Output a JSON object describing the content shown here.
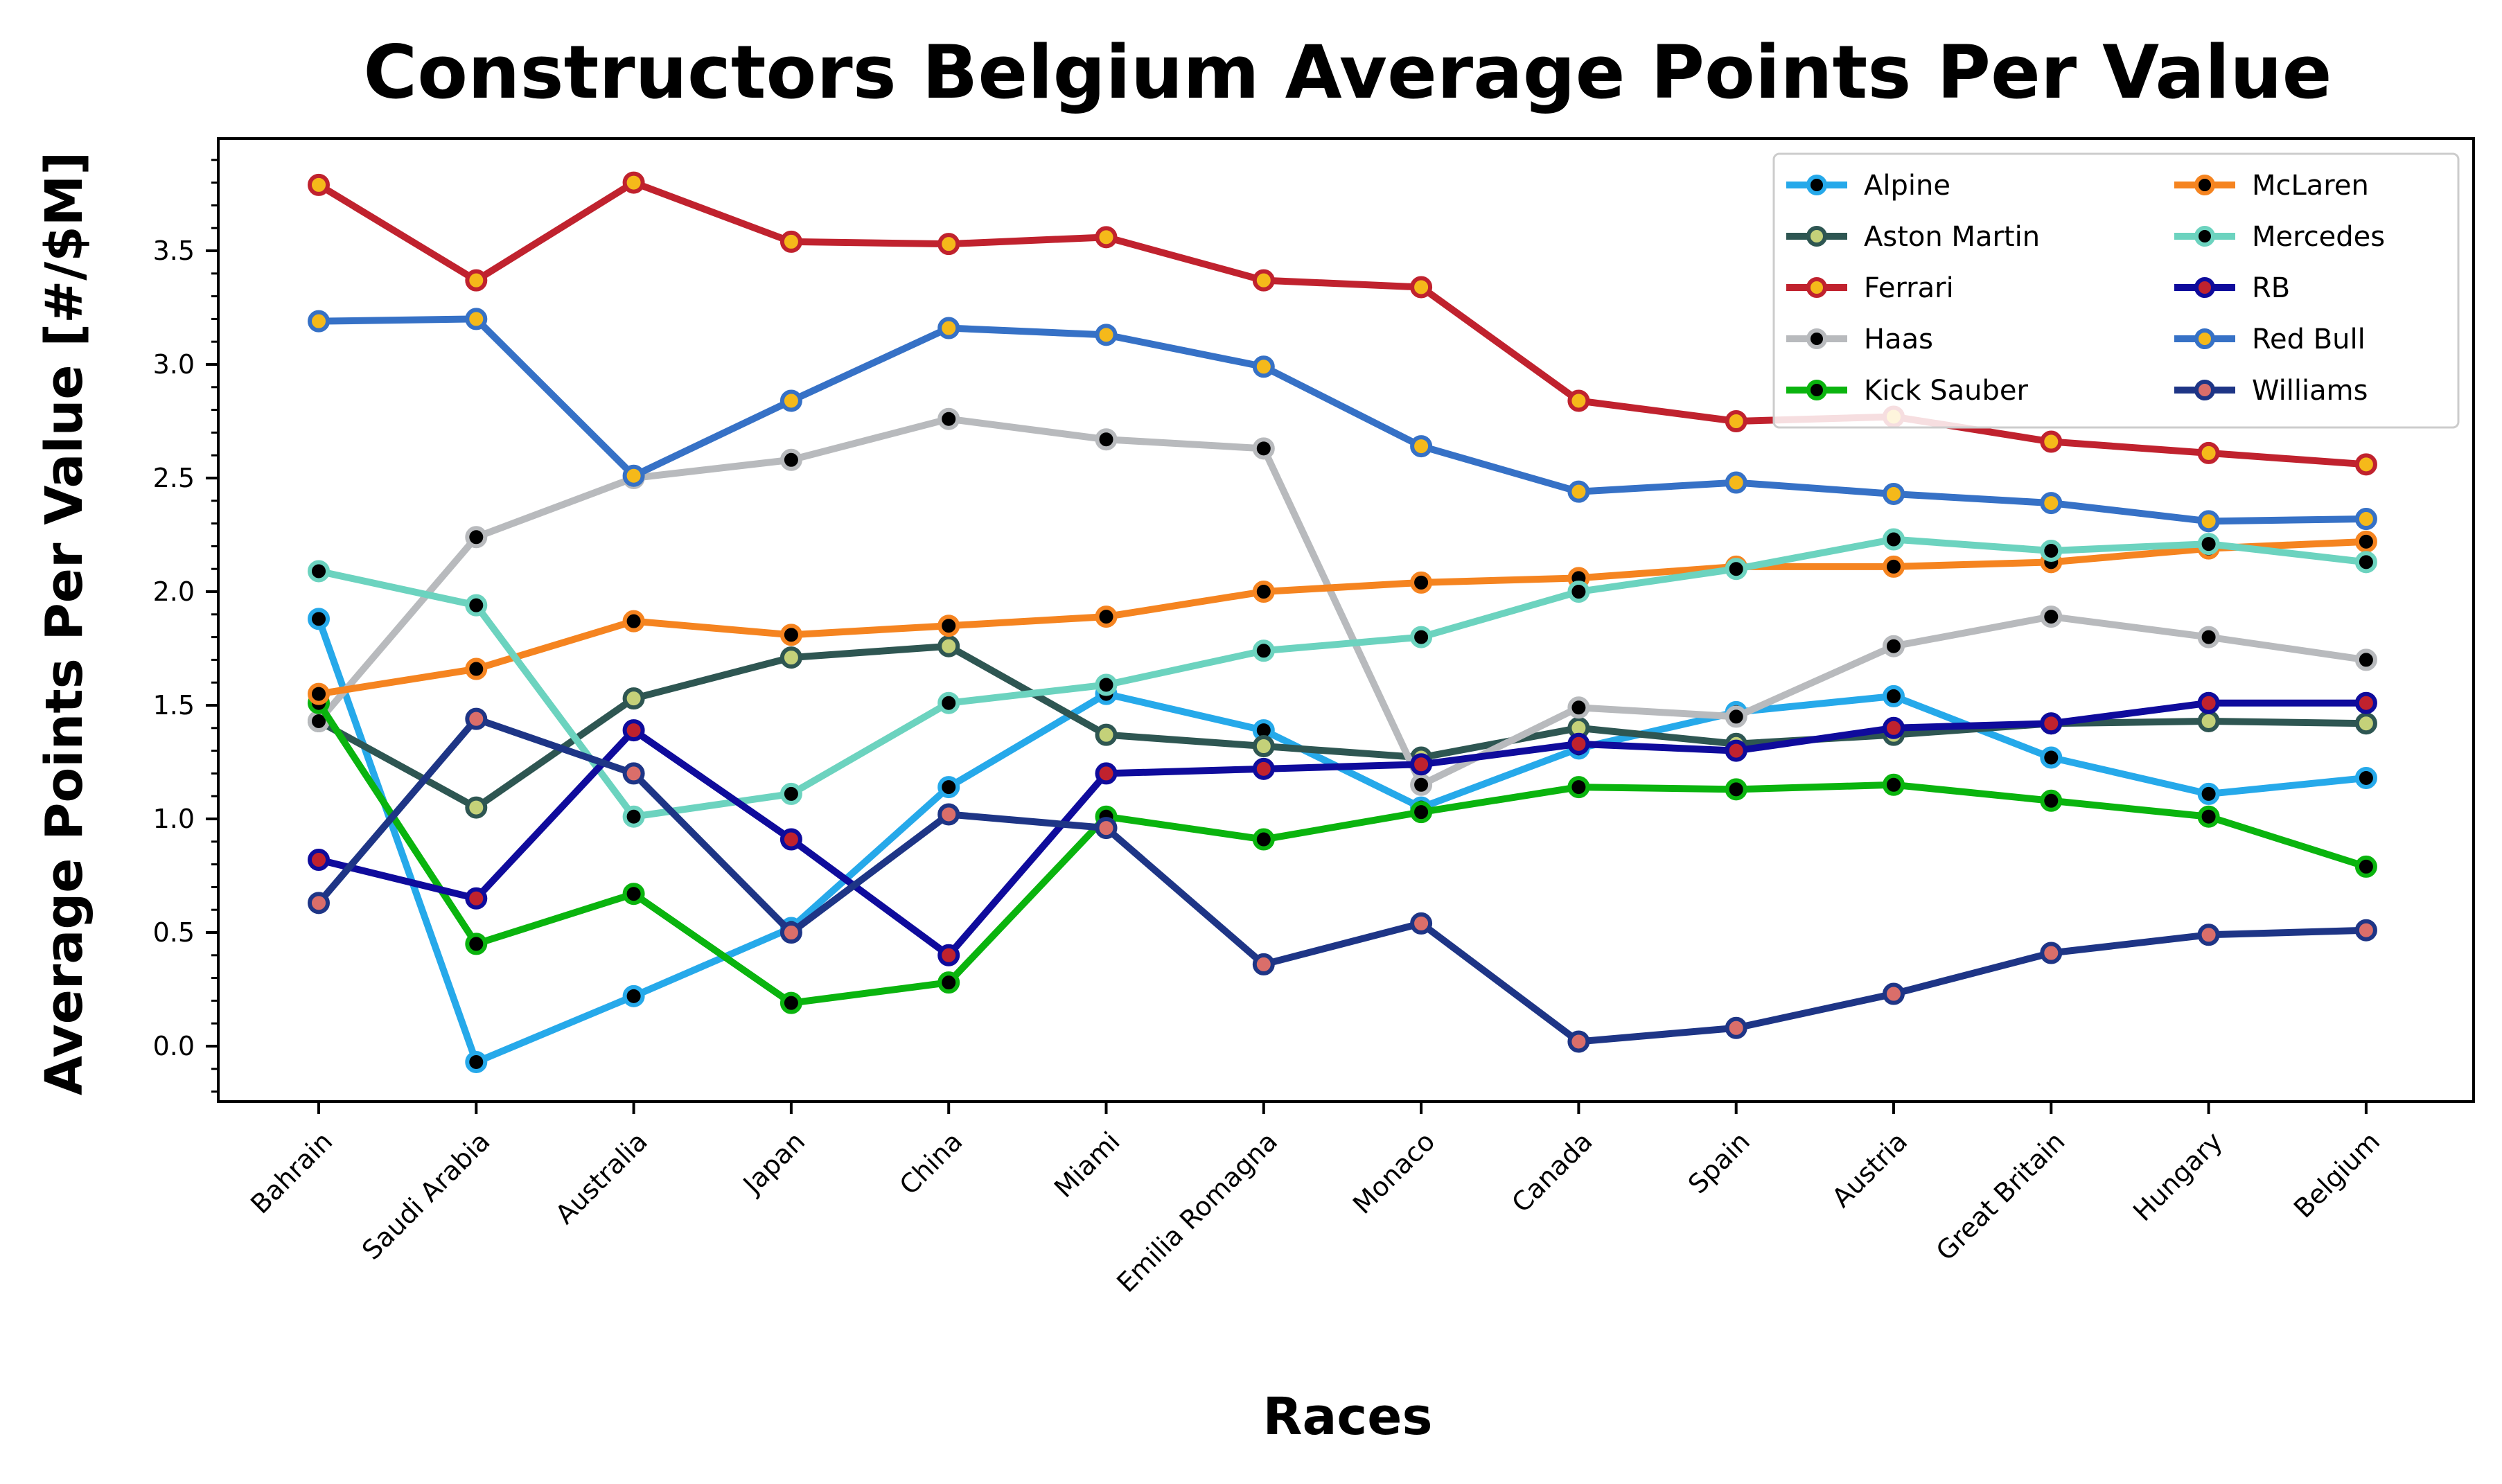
{
  "chart_data": {
    "type": "line",
    "title": "Constructors Belgium Average Points Per Value",
    "xlabel": "Races",
    "ylabel": "Average Points Per Value [#/$M]",
    "categories": [
      "Bahrain",
      "Saudi Arabia",
      "Australia",
      "Japan",
      "China",
      "Miami",
      "Emilia Romagna",
      "Monaco",
      "Canada",
      "Spain",
      "Austria",
      "Great Britain",
      "Hungary",
      "Belgium"
    ],
    "ylim": [
      -0.25,
      4.0
    ],
    "yticks": [
      "0.0",
      "0.5",
      "1.0",
      "1.5",
      "2.0",
      "2.5",
      "3.0",
      "3.5"
    ],
    "grid": false,
    "legend_position": "upper right",
    "legend_columns": 2,
    "series": [
      {
        "name": "Alpine",
        "color": "#26a9ea",
        "marker_fill": "#000000",
        "marker_edge": "#26a9ea",
        "values": [
          1.88,
          -0.07,
          0.22,
          0.52,
          1.14,
          1.55,
          1.39,
          1.05,
          1.31,
          1.47,
          1.54,
          1.27,
          1.11,
          1.18
        ]
      },
      {
        "name": "Aston Martin",
        "color": "#2e5652",
        "marker_fill": "#c4d179",
        "marker_edge": "#2e5652",
        "values": [
          1.43,
          1.05,
          1.53,
          1.71,
          1.76,
          1.37,
          1.32,
          1.27,
          1.4,
          1.33,
          1.37,
          1.42,
          1.43,
          1.42
        ]
      },
      {
        "name": "Ferrari",
        "color": "#c0222e",
        "marker_fill": "#f5b91a",
        "marker_edge": "#c0222e",
        "values": [
          3.79,
          3.37,
          3.8,
          3.54,
          3.53,
          3.56,
          3.37,
          3.34,
          2.84,
          2.75,
          2.77,
          2.66,
          2.61,
          2.56
        ]
      },
      {
        "name": "Haas",
        "color": "#b8babd",
        "marker_fill": "#000000",
        "marker_edge": "#b8babd",
        "values": [
          1.43,
          2.24,
          2.5,
          2.58,
          2.76,
          2.67,
          2.63,
          1.15,
          1.49,
          1.45,
          1.76,
          1.89,
          1.8,
          1.7
        ]
      },
      {
        "name": "Kick Sauber",
        "color": "#0ab40e",
        "marker_fill": "#000000",
        "marker_edge": "#0ab40e",
        "values": [
          1.51,
          0.45,
          0.67,
          0.19,
          0.28,
          1.01,
          0.91,
          1.03,
          1.14,
          1.13,
          1.15,
          1.08,
          1.01,
          0.79
        ]
      },
      {
        "name": "McLaren",
        "color": "#f58420",
        "marker_fill": "#000000",
        "marker_edge": "#f58420",
        "values": [
          1.55,
          1.66,
          1.87,
          1.81,
          1.85,
          1.89,
          2.0,
          2.04,
          2.06,
          2.11,
          2.11,
          2.13,
          2.19,
          2.22
        ]
      },
      {
        "name": "Mercedes",
        "color": "#6cd3bf",
        "marker_fill": "#000000",
        "marker_edge": "#6cd3bf",
        "values": [
          2.09,
          1.94,
          1.01,
          1.11,
          1.51,
          1.59,
          1.74,
          1.8,
          2.0,
          2.1,
          2.23,
          2.18,
          2.21,
          2.13
        ]
      },
      {
        "name": "RB",
        "color": "#0f0b9c",
        "marker_fill": "#c0222e",
        "marker_edge": "#0f0b9c",
        "values": [
          0.82,
          0.65,
          1.39,
          0.91,
          0.4,
          1.2,
          1.22,
          1.24,
          1.33,
          1.3,
          1.4,
          1.42,
          1.51,
          1.51
        ]
      },
      {
        "name": "Red Bull",
        "color": "#3671c6",
        "marker_fill": "#f5b91a",
        "marker_edge": "#3671c6",
        "values": [
          3.19,
          3.2,
          2.51,
          2.84,
          3.16,
          3.13,
          2.99,
          2.64,
          2.44,
          2.48,
          2.43,
          2.39,
          2.31,
          2.32
        ]
      },
      {
        "name": "Williams",
        "color": "#1e3586",
        "marker_fill": "#da6e6a",
        "marker_edge": "#1e3586",
        "values": [
          0.63,
          1.44,
          1.2,
          0.5,
          1.02,
          0.96,
          0.36,
          0.54,
          0.02,
          0.08,
          0.23,
          0.41,
          0.49,
          0.51
        ]
      }
    ]
  }
}
